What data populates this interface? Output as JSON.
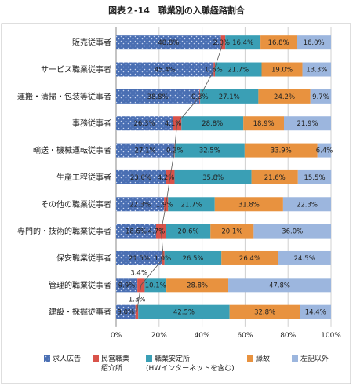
{
  "chart_data": {
    "type": "bar",
    "orientation": "horizontal",
    "stacked": true,
    "percent": true,
    "title": "図表２-14　職業別の入職経路割合",
    "categories": [
      "販売従事者",
      "サービス職業従事者",
      "運搬・清掃・包装等従事者",
      "事務従事者",
      "輸送・機械運転従事者",
      "生産工程従事者",
      "その他の職業従事者",
      "専門的・技術的職業従事者",
      "保安職業従事者",
      "管理的職業従事者",
      "建設・採掘従事者"
    ],
    "series": [
      {
        "name": "求人広告",
        "color": "#4a6fb3",
        "pattern": "dots",
        "values": [
          48.8,
          45.4,
          38.8,
          26.3,
          27.1,
          23.0,
          22.3,
          18.6,
          21.5,
          9.9,
          9.0
        ]
      },
      {
        "name": "民営職業紹介所",
        "color": "#d9534a",
        "pattern": "solid",
        "values": [
          2.0,
          0.6,
          0.3,
          4.1,
          0.2,
          4.2,
          1.9,
          4.7,
          1.0,
          3.4,
          1.3
        ]
      },
      {
        "name": "職業安定所（HWインターネットを含む）",
        "color": "#3a9fb5",
        "pattern": "solid",
        "values": [
          16.4,
          21.7,
          27.1,
          28.8,
          32.5,
          35.8,
          21.7,
          20.6,
          26.5,
          10.1,
          42.5
        ]
      },
      {
        "name": "縁故",
        "color": "#e8923f",
        "pattern": "solid",
        "values": [
          16.8,
          19.0,
          24.2,
          18.9,
          33.9,
          21.6,
          31.8,
          20.1,
          26.4,
          28.8,
          32.8
        ]
      },
      {
        "name": "左記以外",
        "color": "#9cb6de",
        "pattern": "solid",
        "values": [
          16.0,
          13.3,
          9.7,
          21.9,
          6.4,
          15.5,
          22.3,
          36.0,
          24.5,
          47.8,
          14.4
        ]
      }
    ],
    "value_labels": [
      [
        "48.8%",
        "2.0%",
        "16.4%",
        "16.8%",
        "16.0%"
      ],
      [
        "45.4%",
        "0.6%",
        "21.7%",
        "19.0%",
        "13.3%"
      ],
      [
        "38.8%",
        "0.3%",
        "27.1%",
        "24.2%",
        "9.7%"
      ],
      [
        "26.3%",
        "4.1%",
        "28.8%",
        "18.9%",
        "21.9%"
      ],
      [
        "27.1%",
        "0.2%",
        "32.5%",
        "33.9%",
        "6.4%"
      ],
      [
        "23.0%",
        "4.2%",
        "35.8%",
        "21.6%",
        "15.5%"
      ],
      [
        "22.3%",
        "1.9%",
        "21.7%",
        "31.8%",
        "22.3%"
      ],
      [
        "18.6%",
        "4.7%",
        "20.6%",
        "20.1%",
        "36.0%"
      ],
      [
        "21.5%",
        "1.0%",
        "26.5%",
        "26.4%",
        "24.5%"
      ],
      [
        "9.9%",
        "3.4%",
        "10.1%",
        "28.8%",
        "47.8%"
      ],
      [
        "9.0%",
        "1.3%",
        "42.5%",
        "32.8%",
        "14.4%"
      ]
    ],
    "xlim": [
      0,
      100
    ],
    "xticks": [
      "0%",
      "20%",
      "40%",
      "60%",
      "80%",
      "100%"
    ],
    "grid": true,
    "legend_position": "bottom",
    "legend_labels": [
      {
        "line1": "求人広告",
        "line2": ""
      },
      {
        "line1": "民営職業",
        "line2": "紹介所"
      },
      {
        "line1": "職業安定所",
        "line2": "(HWインターネットを含む)"
      },
      {
        "line1": "縁故",
        "line2": ""
      },
      {
        "line1": "左記以外",
        "line2": ""
      }
    ],
    "connector_line_series": "民営職業紹介所"
  }
}
